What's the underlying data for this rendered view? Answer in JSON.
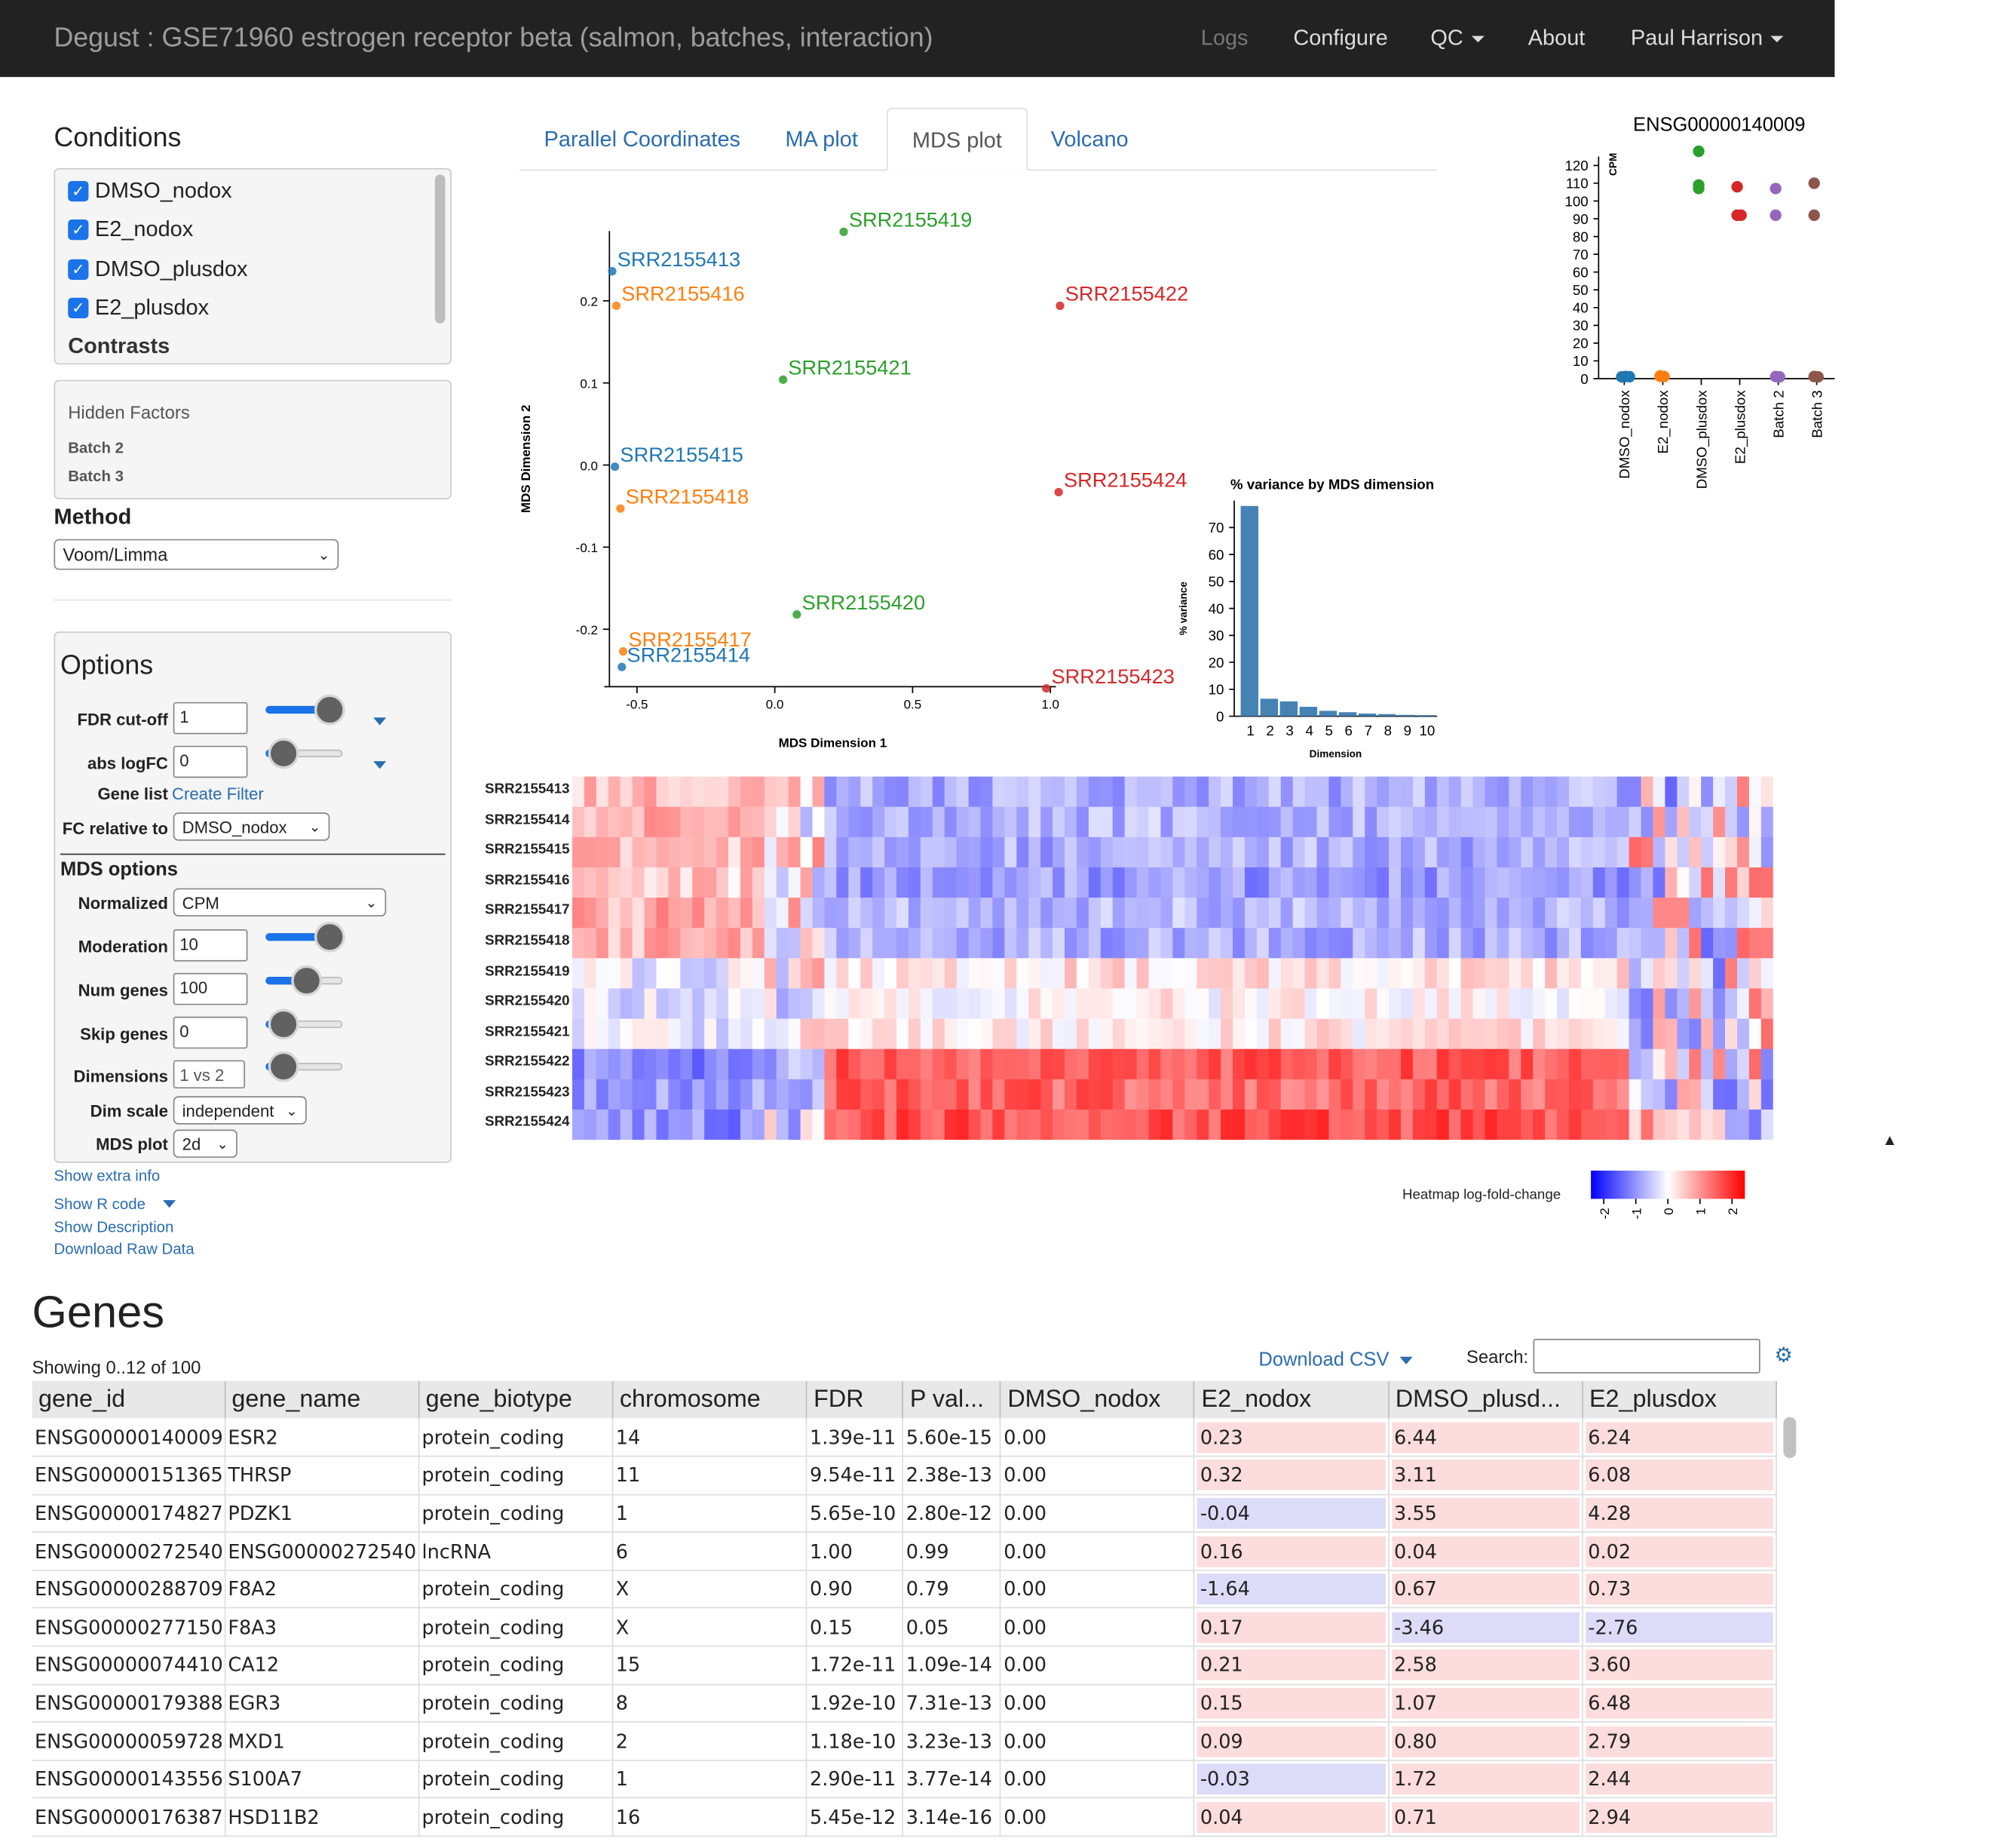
{
  "navbar": {
    "title": "Degust :  GSE71960 estrogen receptor beta (salmon, batches, interaction)",
    "items": [
      {
        "label": "Logs",
        "disabled": true
      },
      {
        "label": "Configure"
      },
      {
        "label": "QC",
        "dropdown": true
      },
      {
        "label": "About"
      },
      {
        "label": "Paul Harrison",
        "dropdown": true
      }
    ]
  },
  "conditions": {
    "title": "Conditions",
    "items": [
      "DMSO_nodox",
      "E2_nodox",
      "DMSO_plusdox",
      "E2_plusdox"
    ],
    "contrasts_label": "Contrasts"
  },
  "hidden_factors": {
    "title": "Hidden Factors",
    "items": [
      "Batch 2",
      "Batch 3"
    ]
  },
  "method": {
    "title": "Method",
    "value": "Voom/Limma"
  },
  "options": {
    "title": "Options",
    "fdr_label": "FDR cut-off",
    "fdr_value": "1",
    "fdr_slider": 1.0,
    "logfc_label": "abs logFC",
    "logfc_value": "0",
    "logfc_slider": 0.0,
    "genelist_label": "Gene list",
    "create_filter": "Create Filter",
    "fc_rel_label": "FC relative to",
    "fc_rel_value": "DMSO_nodox"
  },
  "mds_options": {
    "title": "MDS options",
    "normalized_label": "Normalized",
    "normalized_value": "CPM",
    "moderation_label": "Moderation",
    "moderation_value": "10",
    "moderation_slider": 1.0,
    "numgenes_label": "Num genes",
    "numgenes_value": "100",
    "numgenes_slider": 0.5,
    "skip_label": "Skip genes",
    "skip_value": "0",
    "skip_slider": 0.0,
    "dims_label": "Dimensions",
    "dims_value": "1 vs 2",
    "dims_slider": 0.0,
    "dimscale_label": "Dim scale",
    "dimscale_value": "independent",
    "mdsplot_label": "MDS plot",
    "mdsplot_value": "2d"
  },
  "links": {
    "extra": "Show extra info",
    "rcode": "Show R code",
    "desc": "Show Description",
    "raw": "Download Raw Data"
  },
  "tabs": [
    {
      "label": "Parallel Coordinates"
    },
    {
      "label": "MA plot"
    },
    {
      "label": "MDS plot",
      "active": true
    },
    {
      "label": "Volcano"
    }
  ],
  "colors": {
    "DMSO_nodox": "#1f77b4",
    "E2_nodox": "#ff7f0e",
    "DMSO_plusdox": "#2ca02c",
    "E2_plusdox": "#d62728",
    "batch2": "#9467bd",
    "batch3": "#8c564b",
    "bar": "#4682b4",
    "link": "#2a6cb0"
  },
  "chart_data": [
    {
      "type": "scatter",
      "name": "mds",
      "xlabel": "MDS Dimension 1",
      "ylabel": "MDS Dimension 2",
      "xlim": [
        -0.6,
        1.02
      ],
      "ylim": [
        -0.27,
        0.285
      ],
      "xticks": [
        "-0.5",
        "0.0",
        "0.5",
        "1.0"
      ],
      "yticks": [
        "0.2",
        "0.1",
        "0.0",
        "-0.1",
        "-0.2"
      ],
      "points": [
        {
          "label": "SRR2155413",
          "x": -0.59,
          "y": 0.236,
          "group": "DMSO_nodox"
        },
        {
          "label": "SRR2155416",
          "x": -0.575,
          "y": 0.194,
          "group": "E2_nodox"
        },
        {
          "label": "SRR2155419",
          "x": 0.25,
          "y": 0.284,
          "group": "DMSO_plusdox"
        },
        {
          "label": "SRR2155422",
          "x": 1.035,
          "y": 0.194,
          "group": "E2_plusdox"
        },
        {
          "label": "SRR2155421",
          "x": 0.03,
          "y": 0.104,
          "group": "DMSO_plusdox"
        },
        {
          "label": "SRR2155415",
          "x": -0.58,
          "y": -0.002,
          "group": "DMSO_nodox"
        },
        {
          "label": "SRR2155418",
          "x": -0.56,
          "y": -0.053,
          "group": "E2_nodox"
        },
        {
          "label": "SRR2155424",
          "x": 1.03,
          "y": -0.033,
          "group": "E2_plusdox"
        },
        {
          "label": "SRR2155420",
          "x": 0.08,
          "y": -0.182,
          "group": "DMSO_plusdox"
        },
        {
          "label": "SRR2155417",
          "x": -0.55,
          "y": -0.227,
          "group": "E2_nodox"
        },
        {
          "label": "SRR2155414",
          "x": -0.555,
          "y": -0.246,
          "group": "DMSO_nodox"
        },
        {
          "label": "SRR2155423",
          "x": 0.985,
          "y": -0.272,
          "group": "E2_plusdox"
        }
      ]
    },
    {
      "type": "bar",
      "name": "variance",
      "title": "% variance by MDS dimension",
      "xlabel": "Dimension",
      "ylabel": "% variance",
      "categories": [
        "1",
        "2",
        "3",
        "4",
        "5",
        "6",
        "7",
        "8",
        "9",
        "10"
      ],
      "values": [
        78,
        6.5,
        5.5,
        3.5,
        2.0,
        1.5,
        1.0,
        0.8,
        0.5,
        0.4
      ],
      "ylim": [
        0,
        80
      ],
      "yticks": [
        "0",
        "10",
        "20",
        "30",
        "40",
        "50",
        "60",
        "70"
      ]
    },
    {
      "type": "scatter",
      "name": "gene",
      "title": "ENSG00000140009",
      "ylabel": "CPM",
      "ylim": [
        0,
        125
      ],
      "yticks": [
        "0",
        "10",
        "20",
        "30",
        "40",
        "50",
        "60",
        "70",
        "80",
        "90",
        "100",
        "110",
        "120"
      ],
      "categories": [
        "DMSO_nodox",
        "E2_nodox",
        "DMSO_plusdox",
        "E2_plusdox",
        "Batch 2",
        "Batch 3"
      ],
      "points": [
        {
          "cat": 0,
          "y": 1.0,
          "group": "DMSO_nodox"
        },
        {
          "cat": 0,
          "y": 1.2,
          "group": "DMSO_nodox"
        },
        {
          "cat": 0,
          "y": 1.1,
          "group": "DMSO_nodox"
        },
        {
          "cat": 1,
          "y": 1.3,
          "group": "E2_nodox"
        },
        {
          "cat": 1,
          "y": 1.5,
          "group": "E2_nodox"
        },
        {
          "cat": 1,
          "y": 1.2,
          "group": "E2_nodox"
        },
        {
          "cat": 2,
          "y": 128,
          "group": "DMSO_plusdox"
        },
        {
          "cat": 2,
          "y": 109,
          "group": "DMSO_plusdox"
        },
        {
          "cat": 2,
          "y": 107,
          "group": "DMSO_plusdox"
        },
        {
          "cat": 3,
          "y": 108,
          "group": "E2_plusdox"
        },
        {
          "cat": 3,
          "y": 92,
          "group": "E2_plusdox"
        },
        {
          "cat": 3,
          "y": 92,
          "group": "E2_plusdox"
        },
        {
          "cat": 4,
          "y": 107,
          "group": "batch2"
        },
        {
          "cat": 4,
          "y": 92,
          "group": "batch2"
        },
        {
          "cat": 4,
          "y": 1.2,
          "group": "batch2"
        },
        {
          "cat": 4,
          "y": 1.0,
          "group": "batch2"
        },
        {
          "cat": 5,
          "y": 110,
          "group": "batch3"
        },
        {
          "cat": 5,
          "y": 92,
          "group": "batch3"
        },
        {
          "cat": 5,
          "y": 1.2,
          "group": "batch3"
        },
        {
          "cat": 5,
          "y": 1.0,
          "group": "batch3"
        }
      ]
    },
    {
      "type": "heatmap",
      "name": "heatmap",
      "rows": [
        "SRR2155413",
        "SRR2155414",
        "SRR2155415",
        "SRR2155416",
        "SRR2155417",
        "SRR2155418",
        "SRR2155419",
        "SRR2155420",
        "SRR2155421",
        "SRR2155422",
        "SRR2155423",
        "SRR2155424"
      ],
      "columns": 100,
      "legend_title": "Heatmap log-fold-change",
      "legend_ticks": [
        "-2",
        "-1",
        "0",
        "1",
        "2"
      ],
      "range": [
        -2.5,
        2.5
      ],
      "row_values": [
        [
          0.7,
          -0.8
        ],
        [
          0.8,
          -0.7
        ],
        [
          0.7,
          -0.8
        ],
        [
          0.5,
          -1.0
        ],
        [
          0.8,
          -0.7
        ],
        [
          0.7,
          -0.8
        ],
        [
          -0.2,
          0.3
        ],
        [
          -0.3,
          0.1
        ],
        [
          -0.2,
          0.2
        ],
        [
          -1.2,
          1.6
        ],
        [
          -0.9,
          1.5
        ],
        [
          -1.1,
          1.7
        ]
      ]
    }
  ],
  "genes": {
    "title": "Genes",
    "showing": "Showing 0..12 of 100",
    "download": "Download CSV",
    "search_label": "Search:",
    "search_value": "",
    "columns": [
      "gene_id",
      "gene_name",
      "gene_biotype",
      "chromosome",
      "FDR",
      "P val...",
      "DMSO_nodox",
      "E2_nodox",
      "DMSO_plusd...",
      "E2_plusdox"
    ],
    "rows": [
      [
        "ENSG00000140009",
        "ESR2",
        "protein_coding",
        "14",
        "1.39e-11",
        "5.60e-15",
        "0.00",
        "0.23",
        "6.44",
        "6.24"
      ],
      [
        "ENSG00000151365",
        "THRSP",
        "protein_coding",
        "11",
        "9.54e-11",
        "2.38e-13",
        "0.00",
        "0.32",
        "3.11",
        "6.08"
      ],
      [
        "ENSG00000174827",
        "PDZK1",
        "protein_coding",
        "1",
        "5.65e-10",
        "2.80e-12",
        "0.00",
        "-0.04",
        "3.55",
        "4.28"
      ],
      [
        "ENSG00000272540",
        "ENSG00000272540",
        "lncRNA",
        "6",
        "1.00",
        "0.99",
        "0.00",
        "0.16",
        "0.04",
        "0.02"
      ],
      [
        "ENSG00000288709",
        "F8A2",
        "protein_coding",
        "X",
        "0.90",
        "0.79",
        "0.00",
        "-1.64",
        "0.67",
        "0.73"
      ],
      [
        "ENSG00000277150",
        "F8A3",
        "protein_coding",
        "X",
        "0.15",
        "0.05",
        "0.00",
        "0.17",
        "-3.46",
        "-2.76"
      ],
      [
        "ENSG00000074410",
        "CA12",
        "protein_coding",
        "15",
        "1.72e-11",
        "1.09e-14",
        "0.00",
        "0.21",
        "2.58",
        "3.60"
      ],
      [
        "ENSG00000179388",
        "EGR3",
        "protein_coding",
        "8",
        "1.92e-10",
        "7.31e-13",
        "0.00",
        "0.15",
        "1.07",
        "6.48"
      ],
      [
        "ENSG00000059728",
        "MXD1",
        "protein_coding",
        "2",
        "1.18e-10",
        "3.23e-13",
        "0.00",
        "0.09",
        "0.80",
        "2.79"
      ],
      [
        "ENSG00000143556",
        "S100A7",
        "protein_coding",
        "1",
        "2.90e-11",
        "3.77e-14",
        "0.00",
        "-0.03",
        "1.72",
        "2.44"
      ],
      [
        "ENSG00000176387",
        "HSD11B2",
        "protein_coding",
        "16",
        "5.45e-12",
        "3.14e-16",
        "0.00",
        "0.04",
        "0.71",
        "2.94"
      ]
    ]
  }
}
